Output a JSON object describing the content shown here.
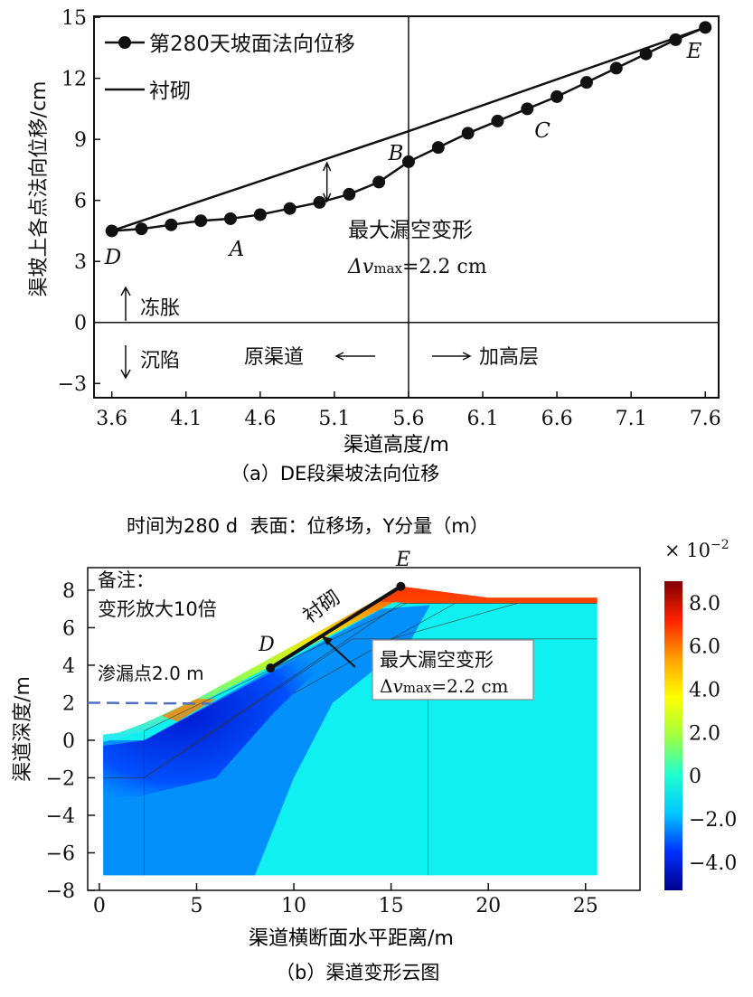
{
  "chart_data": [
    {
      "type": "line",
      "xlabel": "渠道高度/m",
      "ylabel": "渠坡上各点法向位移/cm",
      "caption": "（a）DE段渠坡法向位移",
      "xlim": [
        3.48,
        7.69
      ],
      "ylim": [
        -3.7,
        15.05
      ],
      "xticks": [
        "3.6",
        "4.1",
        "4.6",
        "5.1",
        "5.6",
        "6.1",
        "6.6",
        "7.1",
        "7.6"
      ],
      "yticks": [
        "−3",
        "0",
        "3",
        "6",
        "9",
        "12",
        "15"
      ],
      "legend_position": "top-left",
      "series": [
        {
          "name": "第280天坡面法向位移",
          "marker": "circle",
          "x": [
            3.6,
            3.8,
            4.0,
            4.2,
            4.4,
            4.6,
            4.8,
            5.0,
            5.2,
            5.4,
            5.6,
            5.8,
            6.0,
            6.2,
            6.4,
            6.6,
            6.8,
            7.0,
            7.2,
            7.4,
            7.6
          ],
          "y": [
            4.5,
            4.6,
            4.8,
            5.0,
            5.1,
            5.3,
            5.6,
            5.9,
            6.3,
            6.9,
            7.9,
            8.6,
            9.3,
            9.9,
            10.5,
            11.1,
            11.8,
            12.5,
            13.2,
            13.9,
            14.5
          ]
        },
        {
          "name": "衬砌",
          "x": [
            3.6,
            5.6,
            7.6
          ],
          "y": [
            4.5,
            9.4,
            14.5
          ]
        }
      ],
      "point_labels": [
        {
          "t": "D"
        },
        {
          "t": "A"
        },
        {
          "t": "B"
        },
        {
          "t": "C"
        },
        {
          "t": "E"
        }
      ],
      "annotations": {
        "max_void": "最大漏空变形",
        "dv": "Δv",
        "dv_sub": "max",
        "dv_val": "=2.2 cm",
        "frost": "冻胀",
        "settle": "沉陷",
        "orig": "原渠道",
        "raised": "加高层"
      }
    },
    {
      "type": "heatmap",
      "title": "时间为280 d  表面：位移场，Y分量（m）",
      "xlabel": "渠道横断面水平距离/m",
      "ylabel": "渠道深度/m",
      "caption": "（b）渠道变形云图",
      "xlim": [
        -0.6,
        27.8
      ],
      "ylim": [
        -8,
        9.2
      ],
      "xticks": [
        "0",
        "5",
        "10",
        "15",
        "20",
        "25"
      ],
      "yticks": [
        "−8",
        "−6",
        "−4",
        "−2",
        "0",
        "2",
        "4",
        "6",
        "8"
      ],
      "colorbar": {
        "multiplier": "× 10",
        "exponent": "−2",
        "range": [
          -5.3,
          9.0
        ],
        "ticks": [
          "8.0",
          "6.0",
          "4.0",
          "2.0",
          "0",
          "−2.0",
          "−4.0"
        ],
        "colors": [
          "#00008f",
          "#0030ff",
          "#00c8ff",
          "#20ffd0",
          "#a0ff40",
          "#ffff00",
          "#ffa000",
          "#ff2000",
          "#800000"
        ]
      },
      "annotations": {
        "note1": "备注：",
        "note2": "变形放大10倍",
        "seep": "渗漏点2.0 m",
        "lining": "衬砌",
        "D": "D",
        "E": "E",
        "max_void": "最大漏空变形",
        "dv": "Δv",
        "dv_sub": "max",
        "dv_val": "=2.2 cm"
      }
    }
  ]
}
